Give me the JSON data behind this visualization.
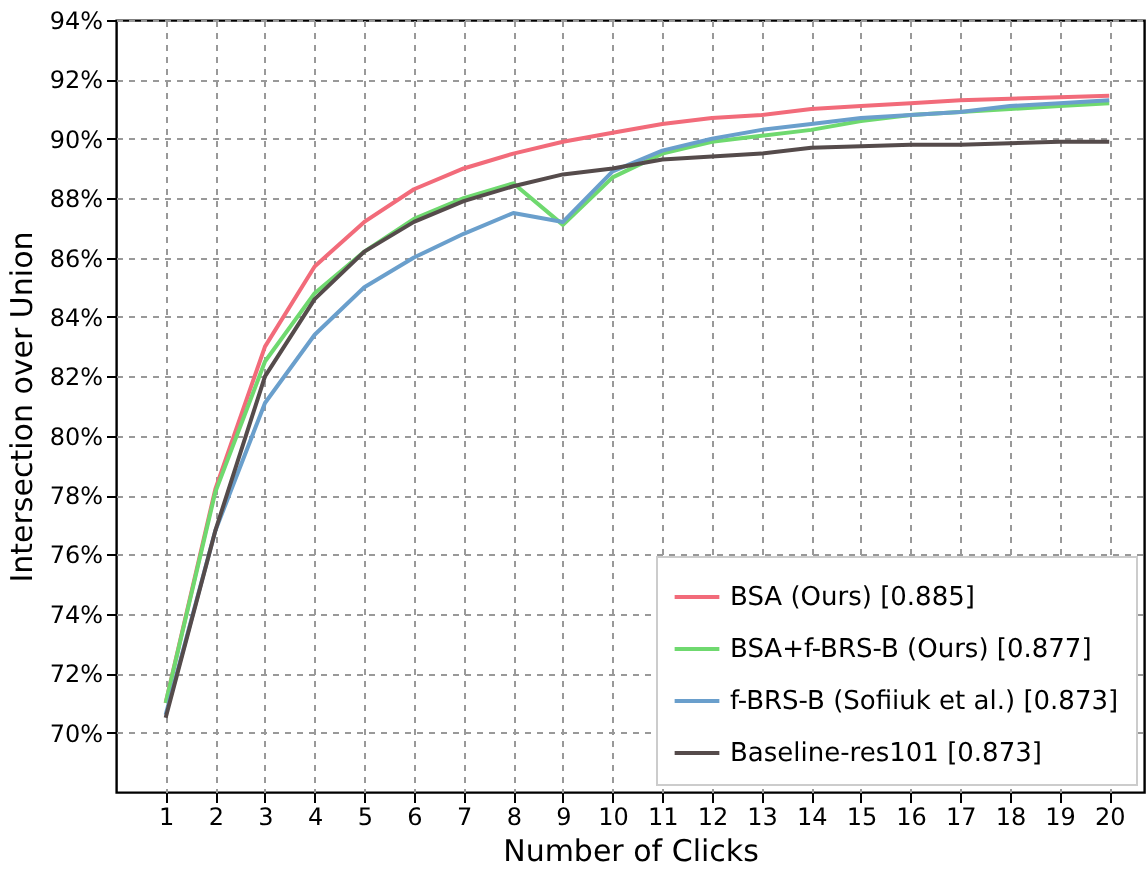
{
  "chart_data": {
    "type": "line",
    "xlabel": "Number of Clicks",
    "ylabel": "Intersection over Union",
    "x": [
      1,
      2,
      3,
      4,
      5,
      6,
      7,
      8,
      9,
      10,
      11,
      12,
      13,
      14,
      15,
      16,
      17,
      18,
      19,
      20
    ],
    "xlim": [
      0,
      20.7
    ],
    "xticks": [
      1,
      2,
      3,
      4,
      5,
      6,
      7,
      8,
      9,
      10,
      11,
      12,
      13,
      14,
      15,
      16,
      17,
      18,
      19,
      20
    ],
    "ylim": [
      68,
      94
    ],
    "yticks": [
      {
        "value": 70,
        "label": "70%"
      },
      {
        "value": 72,
        "label": "72%"
      },
      {
        "value": 74,
        "label": "74%"
      },
      {
        "value": 76,
        "label": "76%"
      },
      {
        "value": 78,
        "label": "78%"
      },
      {
        "value": 80,
        "label": "80%"
      },
      {
        "value": 82,
        "label": "82%"
      },
      {
        "value": 84,
        "label": "84%"
      },
      {
        "value": 86,
        "label": "86%"
      },
      {
        "value": 88,
        "label": "88%"
      },
      {
        "value": 90,
        "label": "90%"
      },
      {
        "value": 92,
        "label": "92%"
      },
      {
        "value": 94,
        "label": "94%"
      }
    ],
    "grid": true,
    "legend": "bottom right",
    "line_style": "solid",
    "marker": "none",
    "series": [
      {
        "name": "BSA (Ours) [0.885]",
        "color": "#f26b7a",
        "values": [
          71.0,
          78.2,
          83.0,
          85.7,
          87.2,
          88.3,
          89.0,
          89.5,
          89.9,
          90.2,
          90.5,
          90.7,
          90.8,
          91.0,
          91.1,
          91.2,
          91.3,
          91.35,
          91.4,
          91.45
        ]
      },
      {
        "name": "BSA+f-BRS-B (Ours) [0.877]",
        "color": "#6fd96f",
        "values": [
          71.0,
          78.1,
          82.5,
          84.8,
          86.2,
          87.3,
          88.0,
          88.5,
          87.1,
          88.7,
          89.5,
          89.9,
          90.1,
          90.3,
          90.6,
          90.8,
          90.9,
          91.0,
          91.1,
          91.2
        ]
      },
      {
        "name": "f-BRS-B (Sofiiuk et al.) [0.873]",
        "color": "#6a9fcc",
        "values": [
          70.6,
          76.8,
          81.1,
          83.4,
          85.0,
          86.0,
          86.8,
          87.5,
          87.2,
          88.9,
          89.6,
          90.0,
          90.3,
          90.5,
          90.7,
          90.8,
          90.9,
          91.1,
          91.2,
          91.3
        ]
      },
      {
        "name": "Baseline-res101 [0.873]",
        "color": "#554b4b",
        "values": [
          70.5,
          76.8,
          82.0,
          84.6,
          86.2,
          87.2,
          87.9,
          88.4,
          88.8,
          89.0,
          89.3,
          89.4,
          89.5,
          89.7,
          89.75,
          89.8,
          89.8,
          89.85,
          89.9,
          89.9
        ]
      }
    ]
  }
}
